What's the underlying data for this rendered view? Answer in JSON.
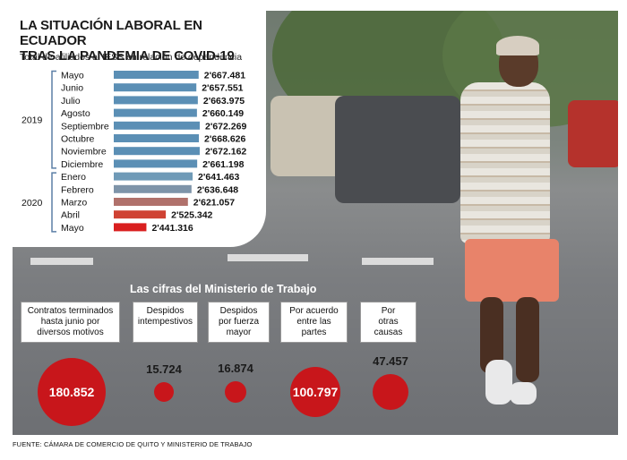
{
  "header": {
    "title_line1": "LA SITUACIÓN LABORAL EN ECUADOR",
    "title_line2": "TRAS LA PANDEMIA DE COVID-19",
    "subtitle": "Total de afiliados al IESS en relación de dependencia"
  },
  "chart_data": [
    {
      "type": "bar",
      "orientation": "horizontal",
      "title": "LA SITUACIÓN LABORAL EN ECUADOR TRAS LA PANDEMIA DE COVID-19",
      "subtitle": "Total de afiliados al IESS en relación de dependencia",
      "groups": [
        {
          "label": "2019",
          "categories": [
            "Mayo",
            "Junio",
            "Julio",
            "Agosto",
            "Septiembre",
            "Octubre",
            "Noviembre",
            "Diciembre"
          ]
        },
        {
          "label": "2020",
          "categories": [
            "Enero",
            "Febrero",
            "Marzo",
            "Abril",
            "Mayo"
          ]
        }
      ],
      "categories": [
        "Mayo",
        "Junio",
        "Julio",
        "Agosto",
        "Septiembre",
        "Octubre",
        "Noviembre",
        "Diciembre",
        "Enero",
        "Febrero",
        "Marzo",
        "Abril",
        "Mayo"
      ],
      "values": [
        2667481,
        2657551,
        2663975,
        2660149,
        2672269,
        2668626,
        2672162,
        2661198,
        2641463,
        2636648,
        2621057,
        2525342,
        2441316
      ],
      "value_labels": [
        "2'667.481",
        "2'657.551",
        "2'663.975",
        "2'660.149",
        "2'672.269",
        "2'668.626",
        "2'672.162",
        "2'661.198",
        "2'641.463",
        "2'636.648",
        "2'621.057",
        "2'525.342",
        "2'441.316"
      ],
      "bar_colors": [
        "#5b8fb5",
        "#5b8fb5",
        "#5b8fb5",
        "#5b8fb5",
        "#5b8fb5",
        "#5b8fb5",
        "#5b8fb5",
        "#5b8fb5",
        "#6f9ab7",
        "#7e94a9",
        "#b0716b",
        "#cf4233",
        "#d91f1f"
      ]
    },
    {
      "type": "bubble",
      "title": "Las cifras del Ministerio de Trabajo",
      "categories": [
        "Contratos terminados hasta junio por diversos motivos",
        "Despidos intempestivos",
        "Despidos por fuerza mayor",
        "Por acuerdo entre las partes",
        "Por otras causas"
      ],
      "values": [
        180852,
        15724,
        16874,
        100797,
        47457
      ],
      "value_labels": [
        "180.852",
        "15.724",
        "16.874",
        "100.797",
        "47.457"
      ],
      "color": "#c8161b"
    }
  ],
  "stats": {
    "title": "Las cifras del Ministerio de Trabajo",
    "items": [
      {
        "label_lines": [
          "Contratos terminados",
          "hasta junio por",
          "diversos motivos"
        ],
        "value": "180.852"
      },
      {
        "label_lines": [
          "Despidos",
          "intempestivos"
        ],
        "value": "15.724"
      },
      {
        "label_lines": [
          "Despidos",
          "por fuerza",
          "mayor"
        ],
        "value": "16.874"
      },
      {
        "label_lines": [
          "Por acuerdo",
          "entre las",
          "partes"
        ],
        "value": "100.797"
      },
      {
        "label_lines": [
          "Por",
          "otras",
          "causas"
        ],
        "value": "47.457"
      }
    ]
  },
  "footer": "FUENTE: CÁMARA DE COMERCIO DE QUITO Y MINISTERIO DE TRABAJO",
  "colors": {
    "accent_red": "#c8161b",
    "bar_blue": "#5b8fb5"
  }
}
